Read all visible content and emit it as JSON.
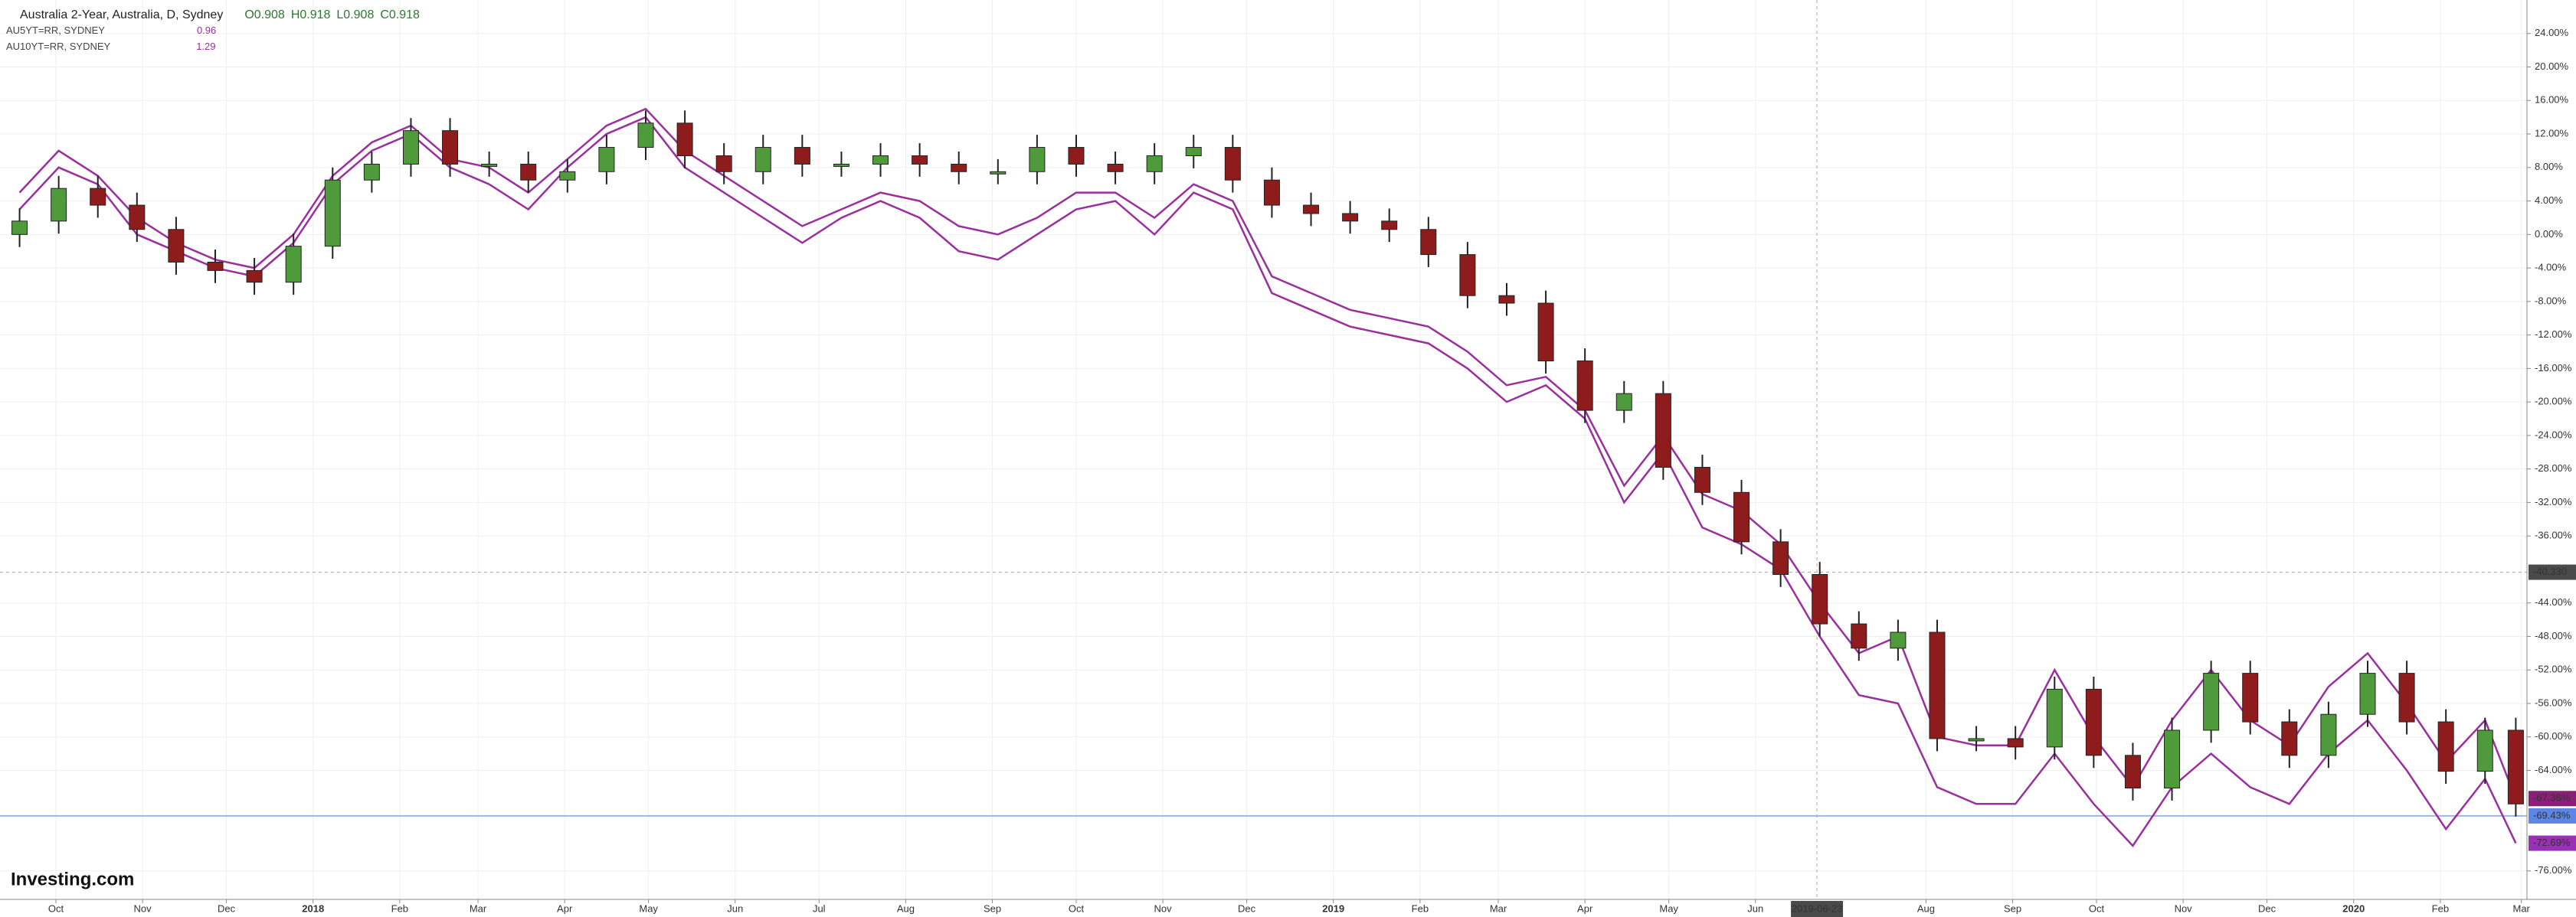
{
  "chart_data": {
    "type": "candlestick",
    "title": "Australia 2-Year, Australia, D, Sydney",
    "ohlc_text": [
      "O0.908",
      "H0.918",
      "L0.908",
      "C0.918"
    ],
    "logo": "Investing.com",
    "up_color": "#4f9a3a",
    "down_color": "#8e1c1c",
    "grid": true,
    "x": [
      "2017-09-18",
      "2017-10-02",
      "2017-10-16",
      "2017-10-30",
      "2017-11-13",
      "2017-11-27",
      "2017-12-11",
      "2017-12-25",
      "2018-01-08",
      "2018-01-22",
      "2018-02-05",
      "2018-02-19",
      "2018-03-05",
      "2018-03-19",
      "2018-04-02",
      "2018-04-16",
      "2018-04-30",
      "2018-05-14",
      "2018-05-28",
      "2018-06-11",
      "2018-06-25",
      "2018-07-09",
      "2018-07-23",
      "2018-08-06",
      "2018-08-20",
      "2018-09-03",
      "2018-09-17",
      "2018-10-01",
      "2018-10-15",
      "2018-10-29",
      "2018-11-12",
      "2018-11-26",
      "2018-12-10",
      "2018-12-24",
      "2019-01-07",
      "2019-01-21",
      "2019-02-04",
      "2019-02-18",
      "2019-03-04",
      "2019-03-18",
      "2019-04-01",
      "2019-04-15",
      "2019-04-29",
      "2019-05-13",
      "2019-05-27",
      "2019-06-10",
      "2019-06-24",
      "2019-07-08",
      "2019-07-22",
      "2019-08-05",
      "2019-08-19",
      "2019-09-02",
      "2019-09-16",
      "2019-09-30",
      "2019-10-14",
      "2019-10-28",
      "2019-11-11",
      "2019-11-25",
      "2019-12-09",
      "2019-12-23",
      "2020-01-06",
      "2020-01-20",
      "2020-02-03",
      "2020-02-17",
      "2020-02-28"
    ],
    "open": [
      0,
      1.6,
      5.5,
      3.5,
      0.6,
      -3.3,
      -4.3,
      -5.7,
      -1.4,
      6.5,
      8.4,
      12.4,
      8.4,
      8.4,
      6.5,
      7.5,
      10.4,
      13.3,
      9.4,
      7.5,
      10.4,
      8.4,
      8.4,
      9.4,
      8.4,
      7.5,
      7.5,
      10.4,
      8.4,
      7.5,
      9.4,
      10.4,
      6.5,
      3.5,
      2.5,
      1.6,
      0.6,
      -2.4,
      -7.3,
      -8.2,
      -15.1,
      -21,
      -19,
      -27.8,
      -30.8,
      -36.7,
      -40.6,
      -46.5,
      -49.4,
      -47.5,
      -60.2,
      -60.2,
      -61.2,
      -54.3,
      -62.2,
      -66.1,
      -59.2,
      -52.4,
      -58.2,
      -62.2,
      -57.3,
      -52.4,
      -58.2,
      -64.1,
      -59.2
    ],
    "high": [
      3.1,
      7,
      7,
      5,
      2.1,
      -1.8,
      -2.8,
      0.1,
      8,
      9.9,
      13.9,
      13.9,
      9.9,
      9.9,
      9,
      11.9,
      14.8,
      14.8,
      10.9,
      11.9,
      11.9,
      9.9,
      10.9,
      10.9,
      9.9,
      9,
      11.9,
      11.9,
      9.9,
      10.9,
      11.9,
      11.9,
      8,
      5,
      4,
      3.1,
      2.1,
      -0.9,
      -5.8,
      -6.7,
      -13.6,
      -17.5,
      -17.5,
      -26.3,
      -29.3,
      -35.2,
      -39.1,
      -45,
      -46,
      -46,
      -58.7,
      -58.7,
      -52.8,
      -52.8,
      -60.7,
      -57.7,
      -50.9,
      -50.9,
      -56.7,
      -55.8,
      -50.9,
      -50.9,
      -56.7,
      -57.7,
      -57.7
    ],
    "low": [
      -1.5,
      0.1,
      2,
      -0.9,
      -4.8,
      -5.8,
      -7.2,
      -7.2,
      -2.9,
      5,
      6.9,
      6.9,
      6.9,
      5,
      5,
      6,
      8.9,
      7.9,
      6,
      6,
      6.9,
      6.9,
      6.9,
      6.9,
      6,
      6,
      6,
      6.9,
      6,
      6,
      7.9,
      5,
      2,
      1,
      0.1,
      -0.9,
      -3.9,
      -8.8,
      -9.7,
      -16.6,
      -22.5,
      -22.5,
      -29.3,
      -32.3,
      -38.2,
      -42.1,
      -48,
      -50.9,
      -50.9,
      -61.7,
      -61.7,
      -62.7,
      -62.7,
      -63.7,
      -67.6,
      -67.6,
      -60.7,
      -59.7,
      -63.7,
      -63.7,
      -58.8,
      -59.7,
      -65.6,
      -65.6,
      -69.5
    ],
    "close": [
      1.6,
      5.5,
      3.5,
      0.6,
      -3.3,
      -4.3,
      -5.7,
      -1.4,
      6.5,
      8.4,
      12.4,
      8.4,
      8.4,
      6.5,
      7.5,
      10.4,
      13.3,
      9.4,
      7.5,
      10.4,
      8.4,
      8.4,
      9.4,
      8.4,
      7.5,
      7.5,
      10.4,
      8.4,
      7.5,
      9.4,
      10.4,
      6.5,
      3.5,
      2.5,
      1.6,
      0.6,
      -2.4,
      -7.3,
      -8.2,
      -15.1,
      -21,
      -19,
      -27.8,
      -30.8,
      -36.7,
      -40.6,
      -46.5,
      -49.4,
      -47.5,
      -60.2,
      -60.2,
      -61.2,
      -54.3,
      -62.2,
      -66.1,
      -59.2,
      -52.4,
      -58.2,
      -62.2,
      -57.3,
      -52.4,
      -58.2,
      -64.1,
      -59.2,
      -68
    ],
    "series": [
      {
        "name": "AU5YT=RR, SYDNEY",
        "last_value": 0.96,
        "color": "#9a2f9e",
        "values": [
          5,
          10,
          7,
          2,
          -1,
          -3,
          -4,
          0,
          7,
          11,
          13,
          9,
          8,
          5,
          9,
          13,
          15,
          10,
          7,
          4,
          1,
          3,
          5,
          4,
          1,
          0,
          2,
          5,
          5,
          2,
          6,
          4,
          -5,
          -7,
          -9,
          -10,
          -11,
          -14,
          -18,
          -17,
          -21,
          -30,
          -24,
          -31,
          -33,
          -37,
          -44,
          -50,
          -48,
          -60,
          -61,
          -61,
          -52,
          -60,
          -66,
          -58,
          -52,
          -58,
          -61,
          -54,
          -50,
          -56,
          -63,
          -58,
          -67.36
        ]
      },
      {
        "name": "AU10YT=RR, SYDNEY",
        "last_value": 1.29,
        "color": "#9a2f9e",
        "values": [
          3,
          8,
          6,
          0,
          -2,
          -4,
          -5,
          -1,
          6,
          10,
          12,
          8,
          6,
          3,
          8,
          12,
          14,
          8,
          5,
          2,
          -1,
          2,
          4,
          2,
          -2,
          -3,
          0,
          3,
          4,
          0,
          5,
          3,
          -7,
          -9,
          -11,
          -12,
          -13,
          -16,
          -20,
          -18,
          -22,
          -32,
          -26,
          -35,
          -37,
          -40,
          -48,
          -55,
          -56,
          -66,
          -68,
          -68,
          -62,
          -68,
          -73,
          -66,
          -62,
          -66,
          -68,
          -62,
          -58,
          -64,
          -71,
          -65,
          -72.69
        ]
      }
    ],
    "xlim": [
      "2017-09-11",
      "2020-03-03"
    ],
    "ylim": [
      -79.4,
      28
    ],
    "yticks": [
      {
        "value": 24,
        "label": "24.00%"
      },
      {
        "value": 20,
        "label": "20.00%"
      },
      {
        "value": 16,
        "label": "16.00%"
      },
      {
        "value": 12,
        "label": "12.00%"
      },
      {
        "value": 8,
        "label": "8.00%"
      },
      {
        "value": 4,
        "label": "4.00%"
      },
      {
        "value": 0,
        "label": "0.00%"
      },
      {
        "value": -4,
        "label": "-4.00%"
      },
      {
        "value": -8,
        "label": "-8.00%"
      },
      {
        "value": -12,
        "label": "-12.00%"
      },
      {
        "value": -16,
        "label": "-16.00%"
      },
      {
        "value": -20,
        "label": "-20.00%"
      },
      {
        "value": -24,
        "label": "-24.00%"
      },
      {
        "value": -28,
        "label": "-28.00%"
      },
      {
        "value": -32,
        "label": "-32.00%"
      },
      {
        "value": -36,
        "label": "-36.00%"
      },
      {
        "value": -44,
        "label": "-44.00%"
      },
      {
        "value": -48,
        "label": "-48.00%"
      },
      {
        "value": -52,
        "label": "-52.00%"
      },
      {
        "value": -56,
        "label": "-56.00%"
      },
      {
        "value": -60,
        "label": "-60.00%"
      },
      {
        "value": -64,
        "label": "-64.00%"
      },
      {
        "value": -76,
        "label": "-76.00%"
      }
    ],
    "xticks": [
      {
        "value": "2017-10-01",
        "label": "Oct"
      },
      {
        "value": "2017-11-01",
        "label": "Nov"
      },
      {
        "value": "2017-12-01",
        "label": "Dec"
      },
      {
        "value": "2018-01-01",
        "label": "2018"
      },
      {
        "value": "2018-02-01",
        "label": "Feb"
      },
      {
        "value": "2018-03-01",
        "label": "Mar"
      },
      {
        "value": "2018-04-01",
        "label": "Apr"
      },
      {
        "value": "2018-05-01",
        "label": "May"
      },
      {
        "value": "2018-06-01",
        "label": "Jun"
      },
      {
        "value": "2018-07-01",
        "label": "Jul"
      },
      {
        "value": "2018-08-01",
        "label": "Aug"
      },
      {
        "value": "2018-09-01",
        "label": "Sep"
      },
      {
        "value": "2018-10-01",
        "label": "Oct"
      },
      {
        "value": "2018-11-01",
        "label": "Nov"
      },
      {
        "value": "2018-12-01",
        "label": "Dec"
      },
      {
        "value": "2019-01-01",
        "label": "2019"
      },
      {
        "value": "2019-02-01",
        "label": "Feb"
      },
      {
        "value": "2019-03-01",
        "label": "Mar"
      },
      {
        "value": "2019-04-01",
        "label": "Apr"
      },
      {
        "value": "2019-05-01",
        "label": "May"
      },
      {
        "value": "2019-06-01",
        "label": "Jun"
      },
      {
        "value": "2019-08-01",
        "label": "Aug"
      },
      {
        "value": "2019-09-01",
        "label": "Sep"
      },
      {
        "value": "2019-10-01",
        "label": "Oct"
      },
      {
        "value": "2019-11-01",
        "label": "Nov"
      },
      {
        "value": "2019-12-01",
        "label": "Dec"
      },
      {
        "value": "2020-01-01",
        "label": "2020"
      },
      {
        "value": "2020-02-01",
        "label": "Feb"
      },
      {
        "value": "2020-03-01",
        "label": "Mar"
      }
    ],
    "crosshair": {
      "x": "2019-06-23",
      "y": {
        "value": -40.33,
        "label": "-40.330"
      }
    },
    "price_labels": [
      {
        "value": -67.36,
        "label": "-67.36%",
        "color": "#8b1f78"
      },
      {
        "value": -69.43,
        "label": "-69.43%",
        "color": "#5b86e5"
      },
      {
        "value": -72.69,
        "label": "-72.69%",
        "color": "#9a2fb8"
      }
    ],
    "price_line": {
      "value": -69.43,
      "color": "#9db4f0"
    }
  }
}
